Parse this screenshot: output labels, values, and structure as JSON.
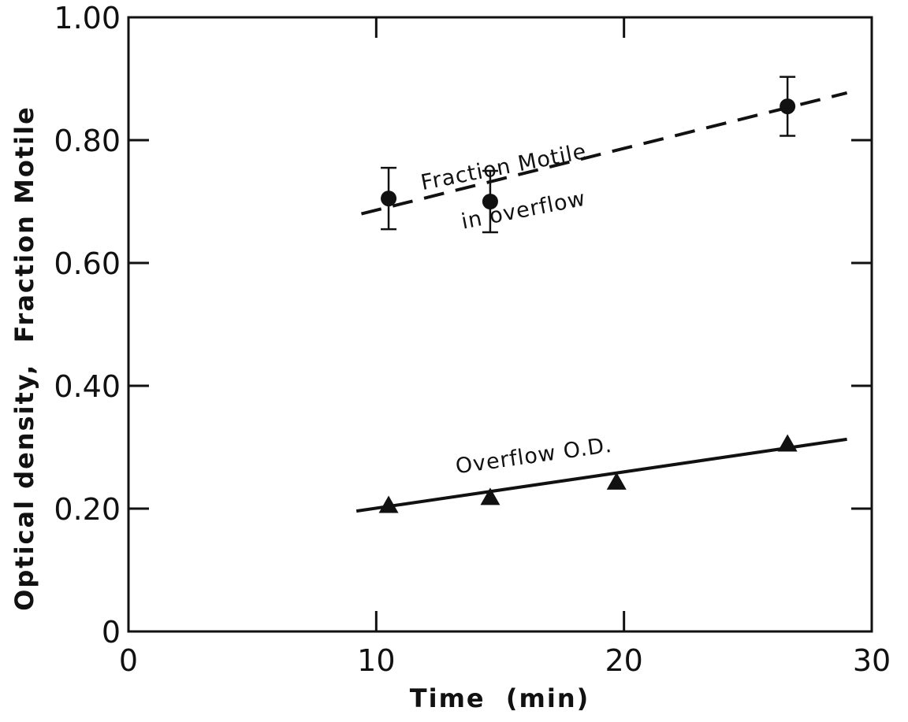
{
  "chart_data": {
    "type": "scatter",
    "xlabel": "Time  (min)",
    "ylabel": "Optical density,  Fraction Motile",
    "xlim": [
      0,
      30
    ],
    "ylim": [
      0,
      1.0
    ],
    "x_ticks": [
      0,
      10,
      20,
      30
    ],
    "x_tick_labels": [
      "0",
      "10",
      "20",
      "30"
    ],
    "y_ticks": [
      0,
      0.2,
      0.4,
      0.6,
      0.8,
      1.0
    ],
    "y_tick_labels": [
      "0",
      "0.20",
      "0.40",
      "0.60",
      "0.80",
      "1.00"
    ],
    "grid": false,
    "series": [
      {
        "marker": "circle",
        "line_style": "dashed",
        "x": [
          10.5,
          14.6,
          26.6
        ],
        "y": [
          0.705,
          0.7,
          0.855
        ],
        "error": [
          0.05,
          0.05,
          0.048
        ],
        "fit_line": {
          "x": [
            9.4,
            29
          ],
          "y": [
            0.68,
            0.877
          ]
        }
      },
      {
        "marker": "triangle",
        "line_style": "solid",
        "x": [
          10.5,
          14.6,
          19.7,
          26.6
        ],
        "y": [
          0.205,
          0.218,
          0.243,
          0.305
        ],
        "fit_line": {
          "x": [
            9.2,
            29
          ],
          "y": [
            0.196,
            0.313
          ]
        }
      }
    ],
    "annotations": [
      {
        "text": "Fraction Motile",
        "x": 15.2,
        "y": 0.745,
        "angle": -11
      },
      {
        "text": "in overflow",
        "x": 16.0,
        "y": 0.675,
        "angle": -11
      },
      {
        "text": "Overflow O.D.",
        "x": 16.4,
        "y": 0.275,
        "angle": -8
      }
    ]
  }
}
